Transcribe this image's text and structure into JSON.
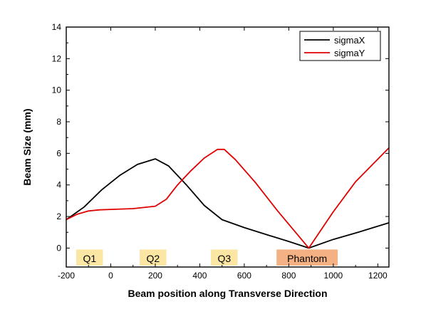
{
  "chart_data": {
    "type": "line",
    "title": "",
    "xlabel": "Beam position along Transverse Direction",
    "ylabel": "Beam Size (mm)",
    "xlim": [
      -200,
      1250
    ],
    "ylim": [
      -1.2,
      14
    ],
    "x_ticks": [
      -200,
      0,
      200,
      400,
      600,
      800,
      1000,
      1200
    ],
    "y_ticks": [
      0,
      2,
      4,
      6,
      8,
      10,
      12,
      14
    ],
    "grid": false,
    "legend_position": "top-right",
    "series": [
      {
        "name": "sigmaX",
        "color": "#000000",
        "points": [
          [
            -200,
            1.8
          ],
          [
            -120,
            2.6
          ],
          [
            -40,
            3.7
          ],
          [
            40,
            4.6
          ],
          [
            120,
            5.3
          ],
          [
            200,
            5.65
          ],
          [
            260,
            5.2
          ],
          [
            340,
            4.0
          ],
          [
            420,
            2.7
          ],
          [
            500,
            1.8
          ],
          [
            600,
            1.3
          ],
          [
            700,
            0.85
          ],
          [
            800,
            0.42
          ],
          [
            890,
            0.0
          ],
          [
            1000,
            0.55
          ],
          [
            1100,
            0.95
          ],
          [
            1250,
            1.6
          ]
        ]
      },
      {
        "name": "sigmaY",
        "color": "#e00000",
        "points": [
          [
            -200,
            1.8
          ],
          [
            -150,
            2.15
          ],
          [
            -100,
            2.35
          ],
          [
            -50,
            2.42
          ],
          [
            0,
            2.45
          ],
          [
            100,
            2.5
          ],
          [
            200,
            2.65
          ],
          [
            250,
            3.1
          ],
          [
            300,
            4.0
          ],
          [
            360,
            4.9
          ],
          [
            420,
            5.7
          ],
          [
            480,
            6.25
          ],
          [
            510,
            6.25
          ],
          [
            560,
            5.6
          ],
          [
            650,
            4.15
          ],
          [
            750,
            2.35
          ],
          [
            890,
            0.0
          ],
          [
            1000,
            2.3
          ],
          [
            1100,
            4.2
          ],
          [
            1250,
            6.35
          ]
        ]
      }
    ],
    "regions": [
      {
        "label": "Q1",
        "x": [
          -155,
          -35
        ],
        "color": "#fbe6a4"
      },
      {
        "label": "Q2",
        "x": [
          130,
          250
        ],
        "color": "#fbe6a4"
      },
      {
        "label": "Q3",
        "x": [
          450,
          570
        ],
        "color": "#fbe6a4"
      },
      {
        "label": "Phantom",
        "x": [
          745,
          1020
        ],
        "color": "#f4b183"
      }
    ]
  }
}
